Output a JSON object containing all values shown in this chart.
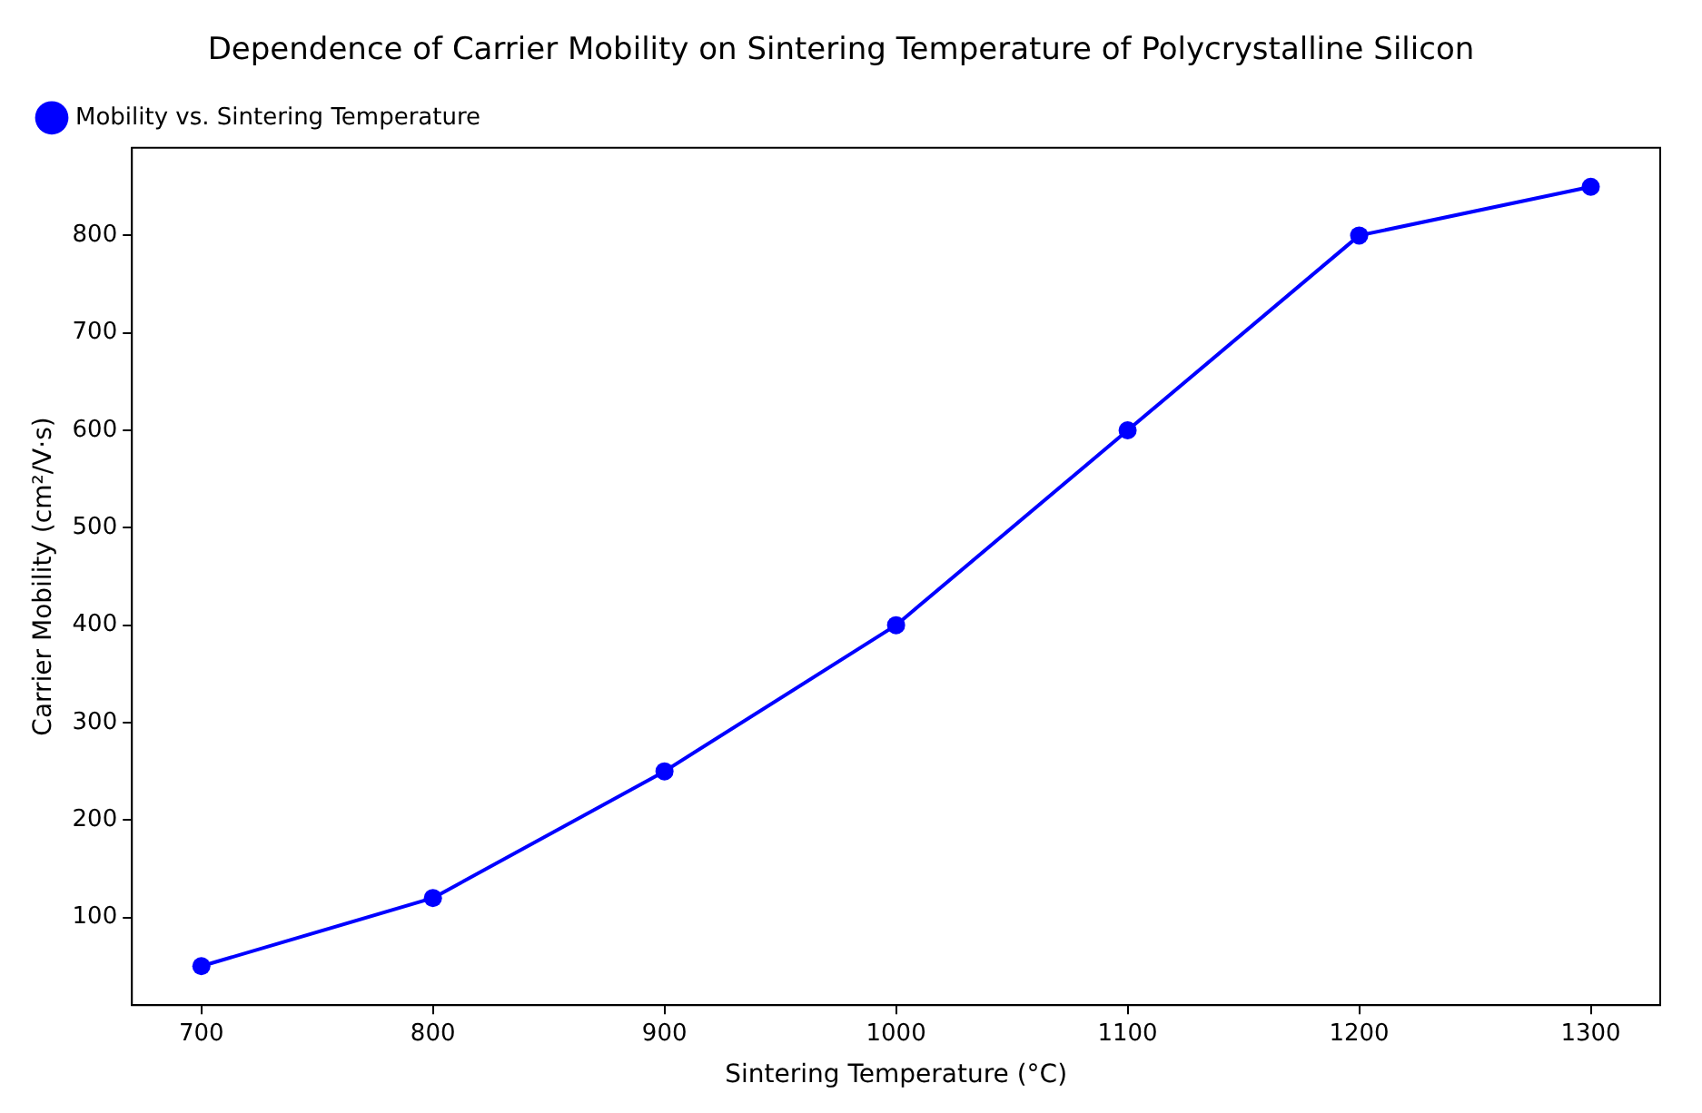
{
  "chart_data": {
    "type": "line",
    "title": "Dependence of Carrier Mobility on Sintering Temperature of Polycrystalline Silicon",
    "xlabel": "Sintering Temperature (°C)",
    "ylabel": "Carrier Mobility (cm²/V·s)",
    "x": [
      700,
      800,
      900,
      1000,
      1100,
      1200,
      1300
    ],
    "series": [
      {
        "name": "Mobility vs. Sintering Temperature",
        "color": "#0000ff",
        "values": [
          50,
          120,
          250,
          400,
          600,
          800,
          850
        ]
      }
    ],
    "xlim": [
      670,
      1330
    ],
    "xticks": [
      700,
      800,
      900,
      1000,
      1100,
      1200,
      1300
    ],
    "ylim": [
      10,
      890
    ],
    "yticks": [
      100,
      200,
      300,
      400,
      500,
      600,
      700,
      800
    ],
    "grid": false,
    "legend": "top left",
    "marker": "circle",
    "line_style": "solid"
  }
}
